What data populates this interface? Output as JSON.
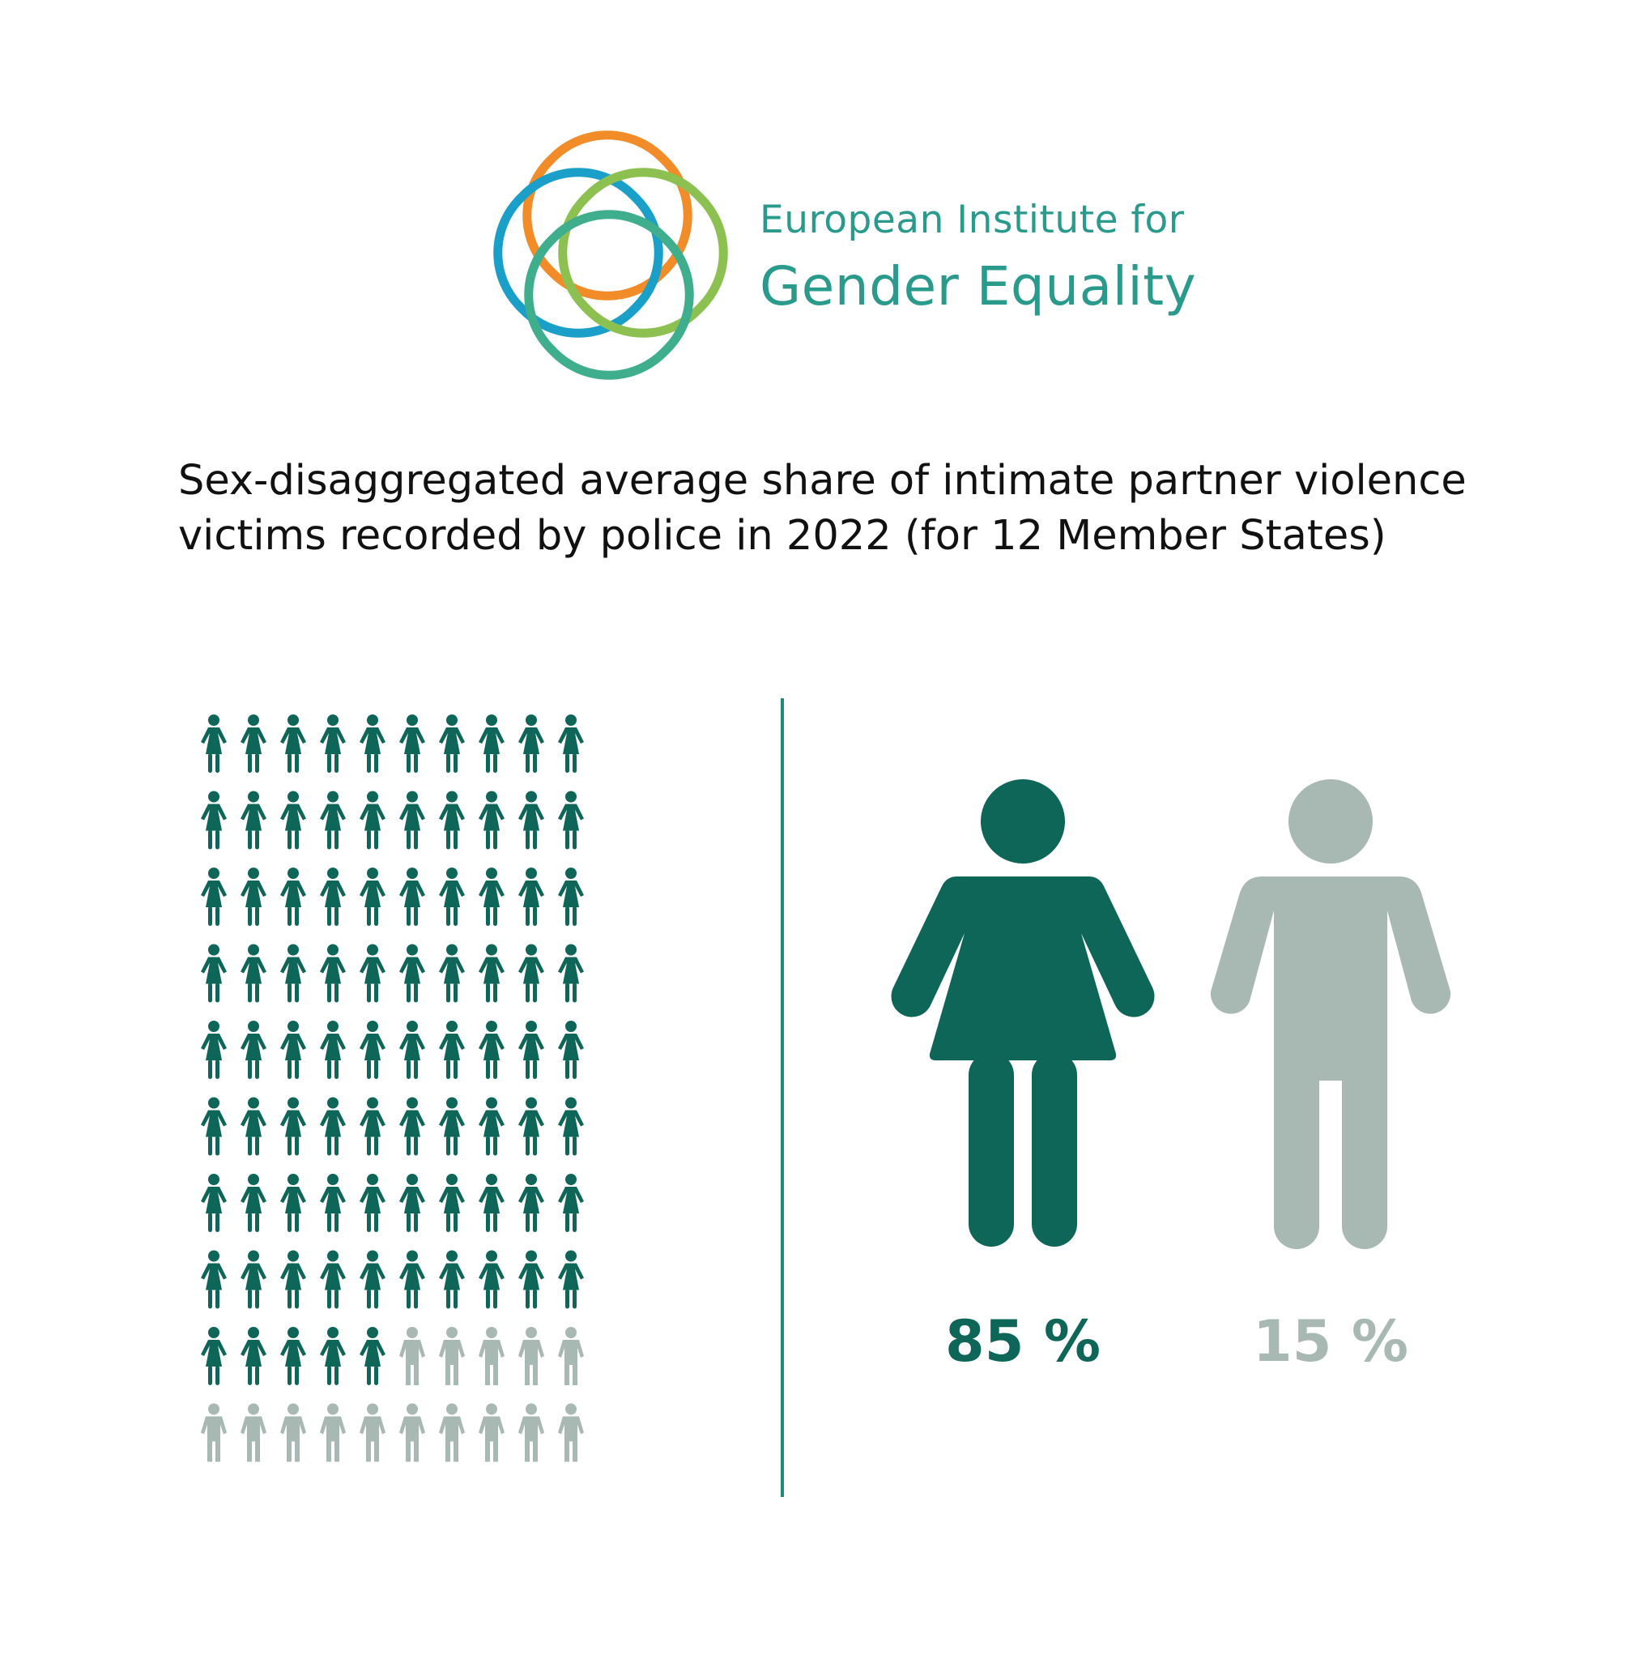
{
  "logo": {
    "line1": "European Institute for",
    "line2": "Gender Equality",
    "ring_colors": [
      "#f28c28",
      "#1aa0c8",
      "#8cc152",
      "#3fae8c"
    ],
    "text_color": "#2a9a8c"
  },
  "title": {
    "line1": "Sex-disaggregated average share of intimate partner violence",
    "line2": "victims recorded by police in 2022 (for 12 Member States)"
  },
  "chart_data": {
    "type": "pictogram",
    "title": "Sex-disaggregated average share of intimate partner violence victims recorded by police in 2022 (for 12 Member States)",
    "total_icons": 100,
    "grid": {
      "columns": 10,
      "rows": 10
    },
    "series": [
      {
        "name": "Women",
        "icon": "female-person-icon",
        "value": 85,
        "label": "85 %",
        "color": "#0e6659"
      },
      {
        "name": "Men",
        "icon": "male-person-icon",
        "value": 15,
        "label": "15 %",
        "color": "#a8b8b2"
      }
    ]
  },
  "colors": {
    "divider": "#1f8a7c",
    "female": "#0e6659",
    "male": "#a8b8b2"
  }
}
